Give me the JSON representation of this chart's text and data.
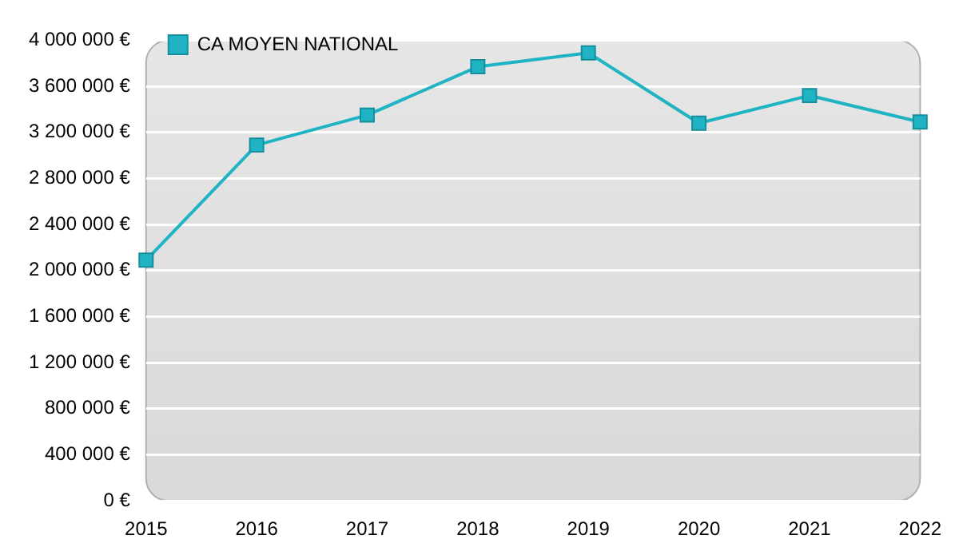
{
  "chart_data": {
    "type": "line",
    "categories": [
      "2015",
      "2016",
      "2017",
      "2018",
      "2019",
      "2020",
      "2021",
      "2022"
    ],
    "series": [
      {
        "name": "CA MOYEN NATIONAL",
        "color": "#1fb3c4",
        "values": [
          2090000,
          3090000,
          3350000,
          3770000,
          3890000,
          3280000,
          3520000,
          3290000
        ]
      }
    ],
    "ylim": [
      0,
      4000000
    ],
    "yticks": [
      {
        "value": 0,
        "label": "0 €"
      },
      {
        "value": 400000,
        "label": "400 000 €"
      },
      {
        "value": 800000,
        "label": "800 000 €"
      },
      {
        "value": 1200000,
        "label": "1 200 000 €"
      },
      {
        "value": 1600000,
        "label": "1 600 000 €"
      },
      {
        "value": 2000000,
        "label": "2 000 000 €"
      },
      {
        "value": 2400000,
        "label": "2 400 000 €"
      },
      {
        "value": 2800000,
        "label": "2 800 000 €"
      },
      {
        "value": 3200000,
        "label": "3 200 000 €"
      },
      {
        "value": 3600000,
        "label": "3 600 000 €"
      },
      {
        "value": 4000000,
        "label": "4 000 000 €"
      }
    ],
    "grid": "y",
    "legend": "top left",
    "marker": "square",
    "line_style": "solid"
  }
}
